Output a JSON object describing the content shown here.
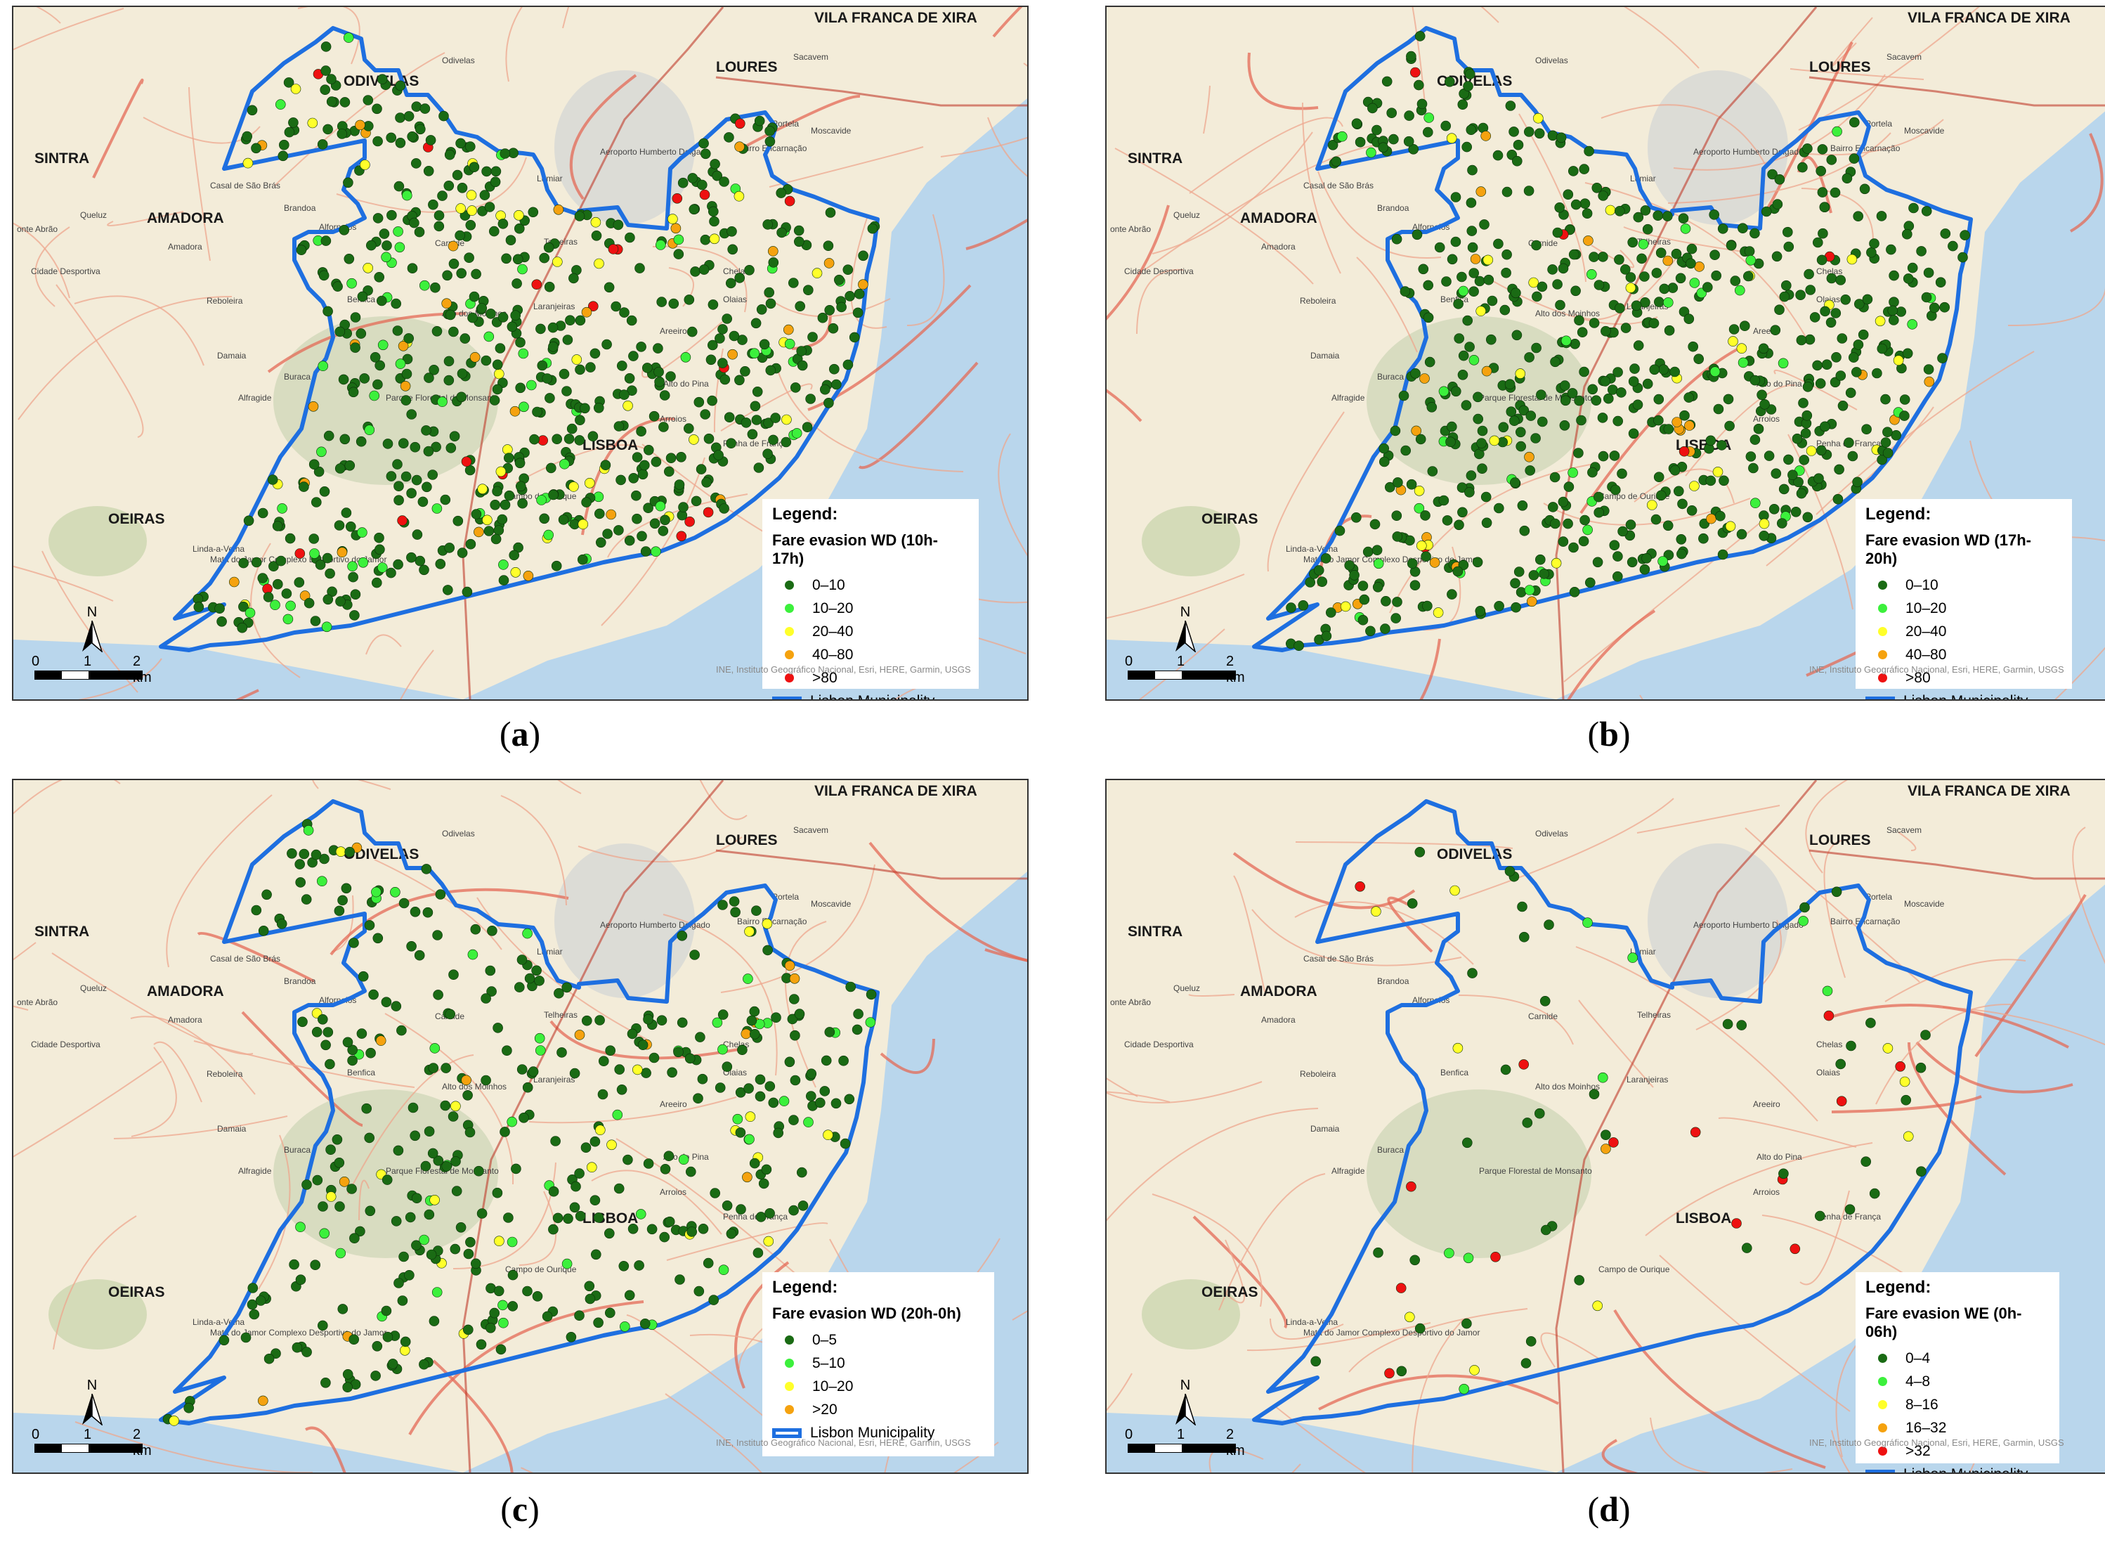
{
  "panels": [
    {
      "id": "a",
      "caption": "a",
      "legend_title": "Legend:",
      "legend_subtitle": "Fare evasion WD (10h-17h)",
      "classes": [
        {
          "label": "0–10",
          "color": "#1a6b14"
        },
        {
          "label": "10–20",
          "color": "#3cf03c"
        },
        {
          "label": "20–40",
          "color": "#ffff2a"
        },
        {
          "label": "40–80",
          "color": "#f5a20f"
        },
        {
          "label": ">80",
          "color": "#ee1111"
        }
      ],
      "boundary_label": "Lisbon Municipality",
      "density": "high",
      "class_mix": [
        0.8,
        0.08,
        0.06,
        0.04,
        0.02
      ]
    },
    {
      "id": "b",
      "caption": "b",
      "legend_title": "Legend:",
      "legend_subtitle": "Fare evasion WD (17h-20h)",
      "classes": [
        {
          "label": "0–10",
          "color": "#1a6b14"
        },
        {
          "label": "10–20",
          "color": "#3cf03c"
        },
        {
          "label": "20–40",
          "color": "#ffff2a"
        },
        {
          "label": "40–80",
          "color": "#f5a20f"
        },
        {
          "label": ">80",
          "color": "#ee1111"
        }
      ],
      "boundary_label": "Lisbon Municipality",
      "density": "high",
      "class_mix": [
        0.86,
        0.06,
        0.05,
        0.025,
        0.005
      ]
    },
    {
      "id": "c",
      "caption": "c",
      "legend_title": "Legend:",
      "legend_subtitle": "Fare evasion WD (20h-0h)",
      "classes": [
        {
          "label": "0–5",
          "color": "#1a6b14"
        },
        {
          "label": "5–10",
          "color": "#3cf03c"
        },
        {
          "label": "10–20",
          "color": "#ffff2a"
        },
        {
          "label": ">20",
          "color": "#f5a20f"
        }
      ],
      "boundary_label": "Lisbon Municipality",
      "density": "medium",
      "class_mix": [
        0.84,
        0.08,
        0.05,
        0.03
      ]
    },
    {
      "id": "d",
      "caption": "d",
      "legend_title": "Legend:",
      "legend_subtitle": "Fare evasion WE (0h-06h)",
      "classes": [
        {
          "label": "0–4",
          "color": "#1a6b14"
        },
        {
          "label": "4–8",
          "color": "#3cf03c"
        },
        {
          "label": "8–16",
          "color": "#ffff2a"
        },
        {
          "label": "16–32",
          "color": "#f5a20f"
        },
        {
          "label": ">32",
          "color": "#ee1111"
        }
      ],
      "boundary_label": "Lisbon Municipality",
      "density": "sparse",
      "class_mix": [
        0.55,
        0.12,
        0.08,
        0.1,
        0.15
      ]
    }
  ],
  "place_names": {
    "vila_franca": "VILA FRANCA DE XIRA",
    "odivelas_caps": "ODIVELAS",
    "odivelas": "Odivelas",
    "loures": "LOURES",
    "sacavem": "Sacavem",
    "sintra": "SINTRA",
    "amadora_caps": "AMADORA",
    "amadora": "Amadora",
    "oeiras": "OEIRAS",
    "casal": "Casal de São Brás",
    "queluz": "Queluz",
    "cidade_desportiva": "Cidade Desportiva",
    "reboleira": "Reboleira",
    "damaia": "Damaia",
    "alfragide": "Alfragide",
    "linda": "Linda-a-Velha",
    "lumiar": "Lumiar",
    "carnide": "Carnide",
    "telheiras": "Telheiras",
    "laranjeiras": "Laranjeiras",
    "benfica": "Benfica",
    "alto_moinhos": "Alto dos Moinhos",
    "chelas": "Chelas",
    "olaias": "Olaias",
    "areeiro": "Areeiro",
    "alto_pina": "Alto do Pina",
    "arroios": "Arroios",
    "penha": "Penha de França",
    "lisboa": "LISBOA",
    "campo_ourique": "Campo de Ourique",
    "parque": "Parque Florestal de Monsanto",
    "aeroporto": "Aeroporto Humberto Delgado",
    "bairro": "Bairro Encarnação",
    "moscavide": "Moscavide",
    "portela": "Portela",
    "brandoa": "Brandoa",
    "alfornelos": "Alfornelos",
    "abraao": "onte Abrão",
    "burraca": "Buraca",
    "mata": "Mata do Jamor Complexo Desportivo do Jamor"
  },
  "attribution": "INE, Instituto Geográfico Nacional, Esri, HERE, Garmin, USGS",
  "north_label": "N",
  "scale_labels": [
    "0",
    "1",
    "2 km"
  ]
}
